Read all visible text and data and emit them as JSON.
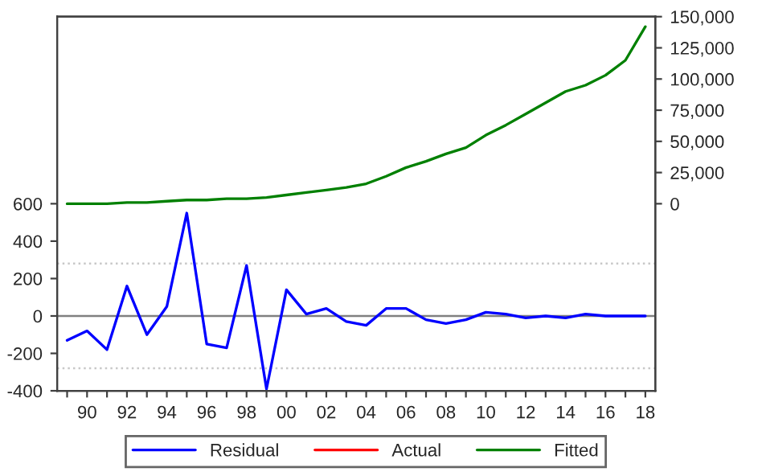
{
  "chart_data": {
    "type": "line",
    "x": [
      1989,
      1990,
      1991,
      1992,
      1993,
      1994,
      1995,
      1996,
      1997,
      1998,
      1999,
      2000,
      2001,
      2002,
      2003,
      2004,
      2005,
      2006,
      2007,
      2008,
      2009,
      2010,
      2011,
      2012,
      2013,
      2014,
      2015,
      2016,
      2017,
      2018
    ],
    "series": [
      {
        "name": "Residual",
        "color": "#0000ff",
        "values": [
          -130,
          -80,
          -180,
          160,
          -100,
          50,
          550,
          -150,
          -170,
          270,
          -390,
          140,
          10,
          40,
          -30,
          -50,
          40,
          40,
          -20,
          -40,
          -20,
          20,
          10,
          -10,
          0,
          -10,
          10,
          0,
          0,
          0
        ]
      },
      {
        "name": "Actual",
        "color": "#ff0000",
        "axis": "y2",
        "values": [
          null,
          null,
          null,
          null,
          null,
          null,
          null,
          null,
          null,
          null,
          null,
          null,
          null,
          null,
          null,
          null,
          null,
          null,
          null,
          null,
          null,
          null,
          null,
          null,
          null,
          null,
          null,
          null,
          null,
          null
        ]
      },
      {
        "name": "Fitted",
        "color": "#008000",
        "axis": "y2",
        "values": [
          0,
          0,
          0,
          1000,
          1000,
          2000,
          3000,
          3000,
          4000,
          4000,
          5000,
          7000,
          9000,
          11000,
          13000,
          16000,
          22000,
          29000,
          34000,
          40000,
          45000,
          55000,
          63000,
          72000,
          81000,
          90000,
          95000,
          103000,
          115000,
          142000
        ]
      }
    ],
    "xlim": [
      1988.5,
      2018.5
    ],
    "xticks": [
      {
        "value": 1989,
        "label": null
      },
      {
        "value": 1990,
        "label": "90"
      },
      {
        "value": 1991,
        "label": null
      },
      {
        "value": 1992,
        "label": "92"
      },
      {
        "value": 1993,
        "label": null
      },
      {
        "value": 1994,
        "label": "94"
      },
      {
        "value": 1995,
        "label": null
      },
      {
        "value": 1996,
        "label": "96"
      },
      {
        "value": 1997,
        "label": null
      },
      {
        "value": 1998,
        "label": "98"
      },
      {
        "value": 1999,
        "label": null
      },
      {
        "value": 2000,
        "label": "00"
      },
      {
        "value": 2001,
        "label": null
      },
      {
        "value": 2002,
        "label": "02"
      },
      {
        "value": 2003,
        "label": null
      },
      {
        "value": 2004,
        "label": "04"
      },
      {
        "value": 2005,
        "label": null
      },
      {
        "value": 2006,
        "label": "06"
      },
      {
        "value": 2007,
        "label": null
      },
      {
        "value": 2008,
        "label": "08"
      },
      {
        "value": 2009,
        "label": null
      },
      {
        "value": 2010,
        "label": "10"
      },
      {
        "value": 2011,
        "label": null
      },
      {
        "value": 2012,
        "label": "12"
      },
      {
        "value": 2013,
        "label": null
      },
      {
        "value": 2014,
        "label": "14"
      },
      {
        "value": 2015,
        "label": null
      },
      {
        "value": 2016,
        "label": "16"
      },
      {
        "value": 2017,
        "label": null
      },
      {
        "value": 2018,
        "label": "18"
      }
    ],
    "ylim": [
      -400,
      1600
    ],
    "yticks": [
      -400,
      -200,
      0,
      200,
      400,
      600
    ],
    "y2lim": [
      -150000,
      150000
    ],
    "y2ticks": [
      0,
      {
        "value": 25000,
        "label": "25,000"
      },
      {
        "value": 50000,
        "label": "50,000"
      },
      {
        "value": 75000,
        "label": "75,000"
      },
      {
        "value": 100000,
        "label": "100,000"
      },
      {
        "value": 125000,
        "label": "125,000"
      },
      {
        "value": 150000,
        "label": "150,000"
      }
    ],
    "ref_lines": [
      {
        "axis": "y",
        "value": 0,
        "color": "#808080",
        "line_style": "solid"
      },
      {
        "axis": "y",
        "value": 280,
        "color": "#c8c8c8",
        "line_style": "dotted"
      },
      {
        "axis": "y",
        "value": -280,
        "color": "#c8c8c8",
        "line_style": "dotted"
      }
    ],
    "grid": false,
    "legend": "bottom",
    "marker": "none",
    "line_style": "solid"
  }
}
